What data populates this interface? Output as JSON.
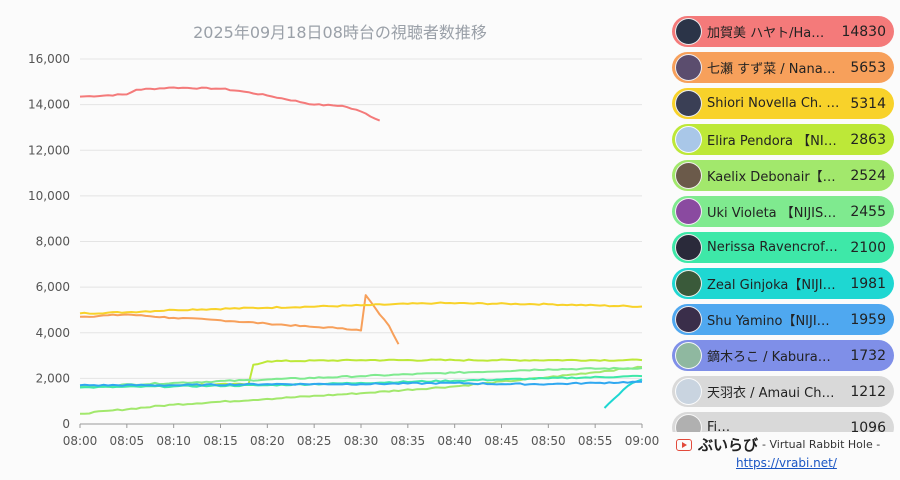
{
  "chart_data": {
    "type": "line",
    "title": "2025年09月18日08時台の視聴者数推移",
    "xlabel": "",
    "ylabel": "",
    "x_range": [
      "08:00",
      "09:00"
    ],
    "x_ticks": [
      "08:00",
      "08:05",
      "08:10",
      "08:15",
      "08:20",
      "08:25",
      "08:30",
      "08:35",
      "08:40",
      "08:45",
      "08:50",
      "08:55",
      "09:00"
    ],
    "ylim": [
      0,
      16000
    ],
    "y_ticks": [
      "0",
      "2,000",
      "4,000",
      "6,000",
      "8,000",
      "10,000",
      "12,000",
      "14,000",
      "16,000"
    ],
    "grid": true,
    "legend": "right",
    "series": [
      {
        "name": "加賀美 ハヤト/Ha…",
        "color": "#f47a7a",
        "points": [
          [
            "08:00",
            14350
          ],
          [
            "08:05",
            14450
          ],
          [
            "08:06",
            14650
          ],
          [
            "08:10",
            14750
          ],
          [
            "08:15",
            14700
          ],
          [
            "08:17",
            14600
          ],
          [
            "08:20",
            14400
          ],
          [
            "08:25",
            14000
          ],
          [
            "08:28",
            13950
          ],
          [
            "08:30",
            13700
          ],
          [
            "08:32",
            13300
          ]
        ]
      },
      {
        "name": "七瀬 すず菜 / Nana…",
        "color": "#f7a05b",
        "points": [
          [
            "08:00",
            4700
          ],
          [
            "08:05",
            4800
          ],
          [
            "08:10",
            4650
          ],
          [
            "08:15",
            4550
          ],
          [
            "08:20",
            4400
          ],
          [
            "08:25",
            4250
          ],
          [
            "08:28",
            4200
          ],
          [
            "08:30",
            4100
          ],
          [
            "08:30.5",
            5650
          ],
          [
            "08:32",
            4800
          ],
          [
            "08:33",
            4300
          ],
          [
            "08:34",
            3500
          ]
        ]
      },
      {
        "name": "Shiori Novella Ch. …",
        "color": "#f8d22a",
        "points": [
          [
            "08:00",
            4850
          ],
          [
            "08:05",
            4900
          ],
          [
            "08:10",
            5000
          ],
          [
            "08:20",
            5100
          ],
          [
            "08:30",
            5200
          ],
          [
            "08:38",
            5300
          ],
          [
            "08:50",
            5250
          ],
          [
            "09:00",
            5150
          ]
        ]
      },
      {
        "name": "Elira Pendora 【NI…",
        "color": "#bde838",
        "points": [
          [
            "08:00",
            1650
          ],
          [
            "08:10",
            1700
          ],
          [
            "08:18",
            1750
          ],
          [
            "08:18.5",
            2600
          ],
          [
            "08:20",
            2750
          ],
          [
            "08:30",
            2800
          ],
          [
            "08:40",
            2800
          ],
          [
            "08:50",
            2800
          ],
          [
            "09:00",
            2800
          ]
        ]
      },
      {
        "name": "Kaelix Debonair【…",
        "color": "#a2e86c",
        "points": [
          [
            "08:00",
            450
          ],
          [
            "08:10",
            850
          ],
          [
            "08:20",
            1100
          ],
          [
            "08:30",
            1350
          ],
          [
            "08:40",
            1650
          ],
          [
            "08:50",
            2050
          ],
          [
            "09:00",
            2500
          ]
        ]
      },
      {
        "name": "Uki Violeta 【NIJIS…",
        "color": "#7fea8f",
        "points": [
          [
            "08:00",
            1650
          ],
          [
            "08:10",
            1800
          ],
          [
            "08:20",
            1950
          ],
          [
            "08:30",
            2100
          ],
          [
            "08:40",
            2250
          ],
          [
            "08:50",
            2400
          ],
          [
            "09:00",
            2450
          ]
        ]
      },
      {
        "name": "Nerissa Ravencrof…",
        "color": "#3ee8a8",
        "points": [
          [
            "08:00",
            1600
          ],
          [
            "08:10",
            1650
          ],
          [
            "08:20",
            1700
          ],
          [
            "08:30",
            1800
          ],
          [
            "08:40",
            1900
          ],
          [
            "08:50",
            2000
          ],
          [
            "09:00",
            2100
          ]
        ]
      },
      {
        "name": "Zeal Ginjoka【NIJI…",
        "color": "#1ed7d2",
        "points": [
          [
            "08:56",
            700
          ],
          [
            "08:57",
            1100
          ],
          [
            "08:58",
            1500
          ],
          [
            "08:59",
            1800
          ],
          [
            "09:00",
            1950
          ]
        ]
      },
      {
        "name": "Shu Yamino【NIJI…",
        "color": "#30a8f0",
        "points": [
          [
            "08:00",
            1700
          ],
          [
            "08:10",
            1700
          ],
          [
            "08:20",
            1750
          ],
          [
            "08:30",
            1750
          ],
          [
            "08:40",
            1800
          ],
          [
            "08:45",
            1750
          ],
          [
            "08:50",
            1750
          ],
          [
            "08:55",
            1800
          ],
          [
            "09:00",
            1850
          ]
        ]
      },
      {
        "name": "鏑木ろこ / Kabura…",
        "color": "#7f8fe8",
        "points": []
      },
      {
        "name": "天羽衣 / Amaui Ch…",
        "color": "#d9d9d9",
        "points": []
      }
    ]
  },
  "ranking": [
    {
      "name": "加賀美 ハヤト/Ha…",
      "count": "14830",
      "bg": "#f47a7a",
      "avatar": "#2b3448"
    },
    {
      "name": "七瀬 すず菜 / Nana…",
      "count": "5653",
      "bg": "#f7a05b",
      "avatar": "#5b4d6e"
    },
    {
      "name": "Shiori Novella Ch. …",
      "count": "5314",
      "bg": "#f8d22a",
      "avatar": "#3a3f55"
    },
    {
      "name": "Elira Pendora 【NI…",
      "count": "2863",
      "bg": "#bde838",
      "avatar": "#a9c7e8"
    },
    {
      "name": "Kaelix Debonair【…",
      "count": "2524",
      "bg": "#a2e86c",
      "avatar": "#6b5a4a"
    },
    {
      "name": "Uki Violeta 【NIJIS…",
      "count": "2455",
      "bg": "#7fea8f",
      "avatar": "#8a4aa0"
    },
    {
      "name": "Nerissa Ravencrof…",
      "count": "2100",
      "bg": "#3ee8a8",
      "avatar": "#2a2a3a"
    },
    {
      "name": "Zeal Ginjoka【NIJI…",
      "count": "1981",
      "bg": "#1ed7d2",
      "avatar": "#3a5a3a"
    },
    {
      "name": "Shu Yamino【NIJI…",
      "count": "1959",
      "bg": "#4fa8f0",
      "avatar": "#3a2e4a"
    },
    {
      "name": "鏑木ろこ / Kabura…",
      "count": "1732",
      "bg": "#7f8fe8",
      "avatar": "#8fb8a0"
    },
    {
      "name": "天羽衣 / Amaui Ch…",
      "count": "1212",
      "bg": "#d9d9d9",
      "avatar": "#c9d4e0"
    },
    {
      "name": "Fi…",
      "count": "1096",
      "bg": "#d9d9d9",
      "avatar": "#b0b0b0"
    }
  ],
  "footer": {
    "brand": "ぶいらび",
    "subtitle": "- Virtual Rabbit Hole -",
    "url": "https://vrabi.net/"
  }
}
